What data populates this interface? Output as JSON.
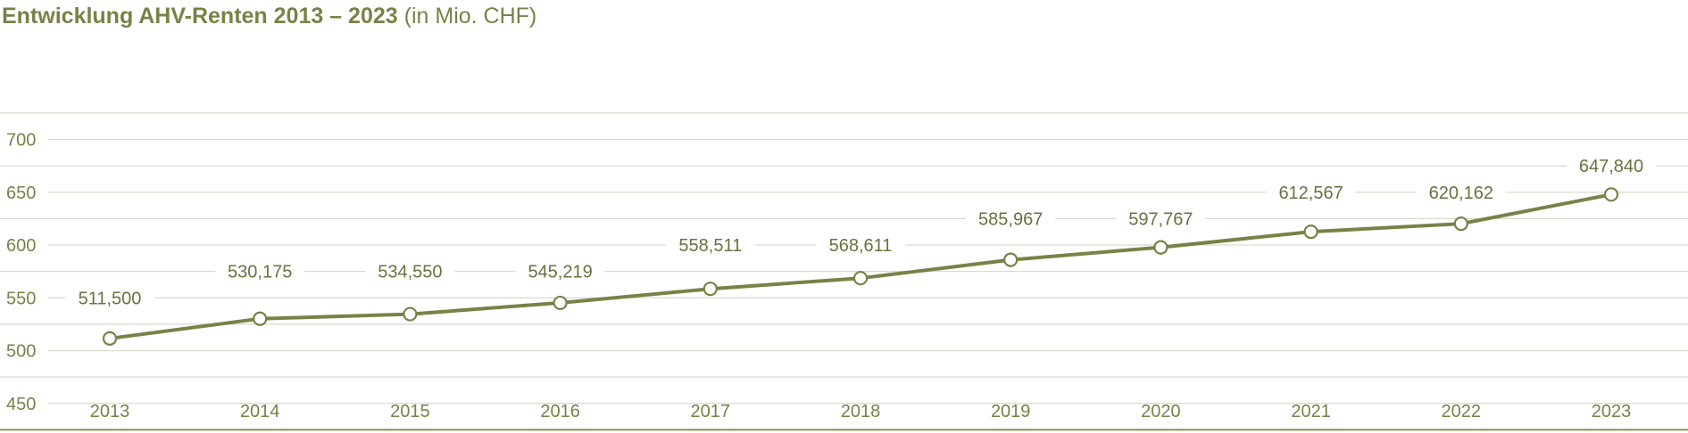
{
  "title": {
    "main": "Entwicklung AHV-Renten 2013 – 2023",
    "sub": "(in Mio. CHF)"
  },
  "colors": {
    "accent": "#7a8146",
    "grid": "#d9d9cf",
    "axis": "#8a8f5a",
    "marker_fill": "#ffffff"
  },
  "chart_data": {
    "type": "line",
    "title": "Entwicklung AHV-Renten 2013 – 2023",
    "subtitle": "(in Mio. CHF)",
    "categories": [
      "2013",
      "2014",
      "2015",
      "2016",
      "2017",
      "2018",
      "2019",
      "2020",
      "2021",
      "2022",
      "2023"
    ],
    "series": [
      {
        "values": [
          511.5,
          530.175,
          534.55,
          545.219,
          558.511,
          568.611,
          585.967,
          597.767,
          612.567,
          620.162,
          647.84
        ],
        "labels": [
          "511,500",
          "530,175",
          "534,550",
          "545,219",
          "558,511",
          "568,611",
          "585,967",
          "597,767",
          "612,567",
          "620,162",
          "647,840"
        ]
      }
    ],
    "yticks": [
      450,
      500,
      550,
      600,
      650,
      700
    ],
    "ylim": [
      425,
      730
    ],
    "grid": true,
    "xlabel": "",
    "ylabel": ""
  }
}
